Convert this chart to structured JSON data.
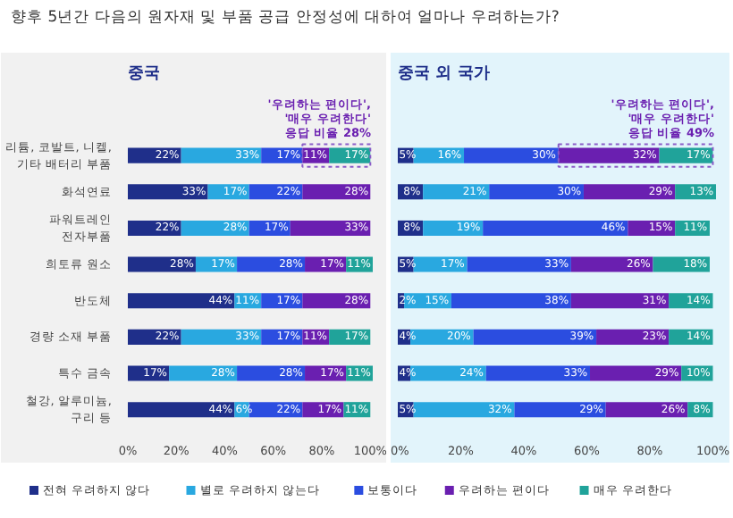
{
  "chart_data": [
    {
      "type": "bar",
      "orientation": "horizontal",
      "stacked": true,
      "title": "중국",
      "annotations": [
        "향후 5년간 다음의 원자재 및 부품 공급 안정성에 대하여 얼마나 우려하는가?",
        "'우려하는 편이다',\n'매우 우려한다'\n응답 비율 28%"
      ],
      "categories": [
        "리튬, 코발트, 니켈,\n기타 배터리 부품",
        "화석연료",
        "파워트레인\n전자부품",
        "희토류 원소",
        "반도체",
        "경량 소재 부품",
        "특수 금속",
        "철강, 알루미늄,\n구리 등"
      ],
      "series": [
        {
          "name": "전혀 우려하지 않다",
          "color": "#1f2f8a",
          "values": [
            22,
            33,
            22,
            28,
            44,
            22,
            17,
            44
          ],
          "value_labels": [
            "22%",
            "33%",
            "22%",
            "28%",
            "44%",
            "22%",
            "17%",
            "44%"
          ]
        },
        {
          "name": "별로 우려하지 않는다",
          "color": "#29a8e0",
          "values": [
            33,
            17,
            28,
            17,
            11,
            33,
            28,
            6
          ],
          "value_labels": [
            "33%",
            "17%",
            "28%",
            "17%",
            "11%",
            "33%",
            "28%",
            "6%"
          ]
        },
        {
          "name": "보통이다",
          "color": "#2b4de0",
          "values": [
            17,
            22,
            17,
            28,
            17,
            17,
            28,
            22
          ],
          "value_labels": [
            "17%",
            "22%",
            "17%",
            "28%",
            "17%",
            "17%",
            "28%",
            "22%"
          ]
        },
        {
          "name": "우려하는 편이다",
          "color": "#6a1fb0",
          "values": [
            11,
            28,
            33,
            17,
            28,
            11,
            17,
            17
          ],
          "value_labels": [
            "11%",
            "28%",
            "33%",
            "17%",
            "28%",
            "11%",
            "17%",
            "17%"
          ]
        },
        {
          "name": "매우 우려한다",
          "color": "#20a39a",
          "values": [
            17,
            0,
            0,
            11,
            0,
            17,
            11,
            11
          ],
          "value_labels": [
            "17%",
            null,
            null,
            "11%",
            null,
            "17%",
            "11%",
            "11%"
          ]
        }
      ],
      "xlim": [
        0,
        101
      ],
      "xticks": [
        {
          "value": 0,
          "label": "0%"
        },
        {
          "value": 20,
          "label": "20%"
        },
        {
          "value": 40,
          "label": "40%"
        },
        {
          "value": 60,
          "label": "60%"
        },
        {
          "value": 80,
          "label": "80%"
        },
        {
          "value": 100,
          "label": "100%"
        }
      ],
      "grid": false,
      "legend": "bottom"
    },
    {
      "type": "bar",
      "orientation": "horizontal",
      "stacked": true,
      "title": "중국 외 국가",
      "annotations": [
        "'우려하는 편이다',\n'매우 우려한다'\n응답 비율 49%"
      ],
      "categories": [
        null,
        null,
        null,
        null,
        null,
        null,
        null,
        null
      ],
      "series": [
        {
          "color": "#1f2f8a",
          "values": [
            5,
            8,
            8,
            5,
            2,
            4,
            4,
            5
          ],
          "value_labels": [
            "5%",
            "8%",
            "8%",
            "5%",
            "2%",
            "4%",
            "4%",
            "5%"
          ]
        },
        {
          "color": "#29a8e0",
          "values": [
            16,
            21,
            19,
            17,
            15,
            20,
            24,
            32
          ],
          "value_labels": [
            "16%",
            "21%",
            "19%",
            "17%",
            "15%",
            "20%",
            "24%",
            "32%"
          ]
        },
        {
          "color": "#2b4de0",
          "values": [
            30,
            30,
            46,
            33,
            38,
            39,
            33,
            29
          ],
          "value_labels": [
            "30%",
            "30%",
            "46%",
            "33%",
            "38%",
            "39%",
            "33%",
            "29%"
          ]
        },
        {
          "color": "#6a1fb0",
          "values": [
            32,
            29,
            15,
            26,
            31,
            23,
            29,
            26
          ],
          "value_labels": [
            "32%",
            "29%",
            "15%",
            "26%",
            "31%",
            "23%",
            "29%",
            "26%"
          ]
        },
        {
          "color": "#20a39a",
          "values": [
            17,
            13,
            11,
            18,
            14,
            14,
            10,
            8
          ],
          "value_labels": [
            "17%",
            "13%",
            "11%",
            "18%",
            "14%",
            "14%",
            "10%",
            "8%"
          ]
        }
      ],
      "xlim": [
        0,
        101
      ],
      "xticks": [
        {
          "value": 0,
          "label": "0%"
        },
        {
          "value": 20,
          "label": "20%"
        },
        {
          "value": 40,
          "label": "40%"
        },
        {
          "value": 60,
          "label": "60%"
        },
        {
          "value": 80,
          "label": "80%"
        },
        {
          "value": 100,
          "label": "100%"
        }
      ],
      "grid": false,
      "tick_labels": "x"
    }
  ]
}
